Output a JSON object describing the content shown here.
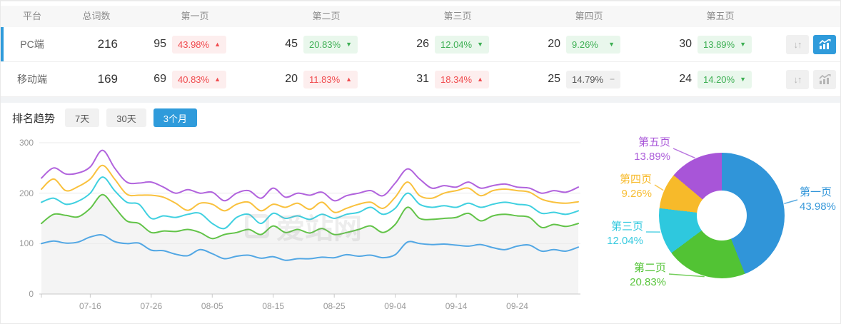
{
  "table": {
    "columns": [
      "平台",
      "总词数",
      "第一页",
      "第二页",
      "第三页",
      "第四页",
      "第五页"
    ],
    "action_icons": [
      "sort-up-down-icon",
      "trend-chart-icon"
    ],
    "rows": [
      {
        "platform": "PC端",
        "total": "216",
        "chart_active": true,
        "pages": [
          {
            "count": "95",
            "pct": "43.98%",
            "trend": "up"
          },
          {
            "count": "45",
            "pct": "20.83%",
            "trend": "down"
          },
          {
            "count": "26",
            "pct": "12.04%",
            "trend": "down"
          },
          {
            "count": "20",
            "pct": "9.26%",
            "trend": "down"
          },
          {
            "count": "30",
            "pct": "13.89%",
            "trend": "down"
          }
        ]
      },
      {
        "platform": "移动端",
        "total": "169",
        "chart_active": false,
        "pages": [
          {
            "count": "69",
            "pct": "40.83%",
            "trend": "up"
          },
          {
            "count": "20",
            "pct": "11.83%",
            "trend": "up"
          },
          {
            "count": "31",
            "pct": "18.34%",
            "trend": "up"
          },
          {
            "count": "25",
            "pct": "14.79%",
            "trend": "flat"
          },
          {
            "count": "24",
            "pct": "14.20%",
            "trend": "down"
          }
        ]
      }
    ]
  },
  "trend": {
    "label": "排名趋势",
    "tabs": [
      {
        "label": "7天",
        "active": false
      },
      {
        "label": "30天",
        "active": false
      },
      {
        "label": "3个月",
        "active": true
      }
    ]
  },
  "watermark": "爱站网",
  "colors": {
    "accent": "#2f9bdb",
    "badge_up": "#f04b4e",
    "badge_down": "#3daf53"
  },
  "chart_data": [
    {
      "type": "line",
      "title": "排名趋势 3个月",
      "ylim": [
        0,
        300
      ],
      "y_ticks": [
        0,
        100,
        200,
        300
      ],
      "x_range_days": [
        0,
        88
      ],
      "x_step_days": 2,
      "x_tick_days": [
        8,
        18,
        28,
        38,
        48,
        58,
        68,
        78
      ],
      "x_tick_labels": [
        "07-16",
        "07-26",
        "08-05",
        "08-15",
        "08-25",
        "09-04",
        "09-14",
        "09-24"
      ],
      "grid": true,
      "series": [
        {
          "name": "第一页",
          "color": "#52a7e4",
          "values": [
            100,
            105,
            101,
            103,
            113,
            117,
            104,
            100,
            101,
            87,
            86,
            79,
            76,
            88,
            80,
            70,
            75,
            77,
            71,
            74,
            67,
            70,
            70,
            73,
            72,
            78,
            75,
            77,
            72,
            78,
            103,
            100,
            98,
            99,
            97,
            95,
            98,
            92,
            88,
            95,
            97,
            85,
            88,
            85,
            93
          ]
        },
        {
          "name": "第二页",
          "color": "#62c348",
          "fill": "#f4f4f4",
          "values": [
            140,
            158,
            156,
            153,
            170,
            197,
            172,
            145,
            140,
            122,
            125,
            124,
            128,
            122,
            110,
            118,
            122,
            128,
            118,
            135,
            122,
            128,
            121,
            130,
            118,
            122,
            128,
            135,
            122,
            138,
            172,
            150,
            148,
            150,
            152,
            160,
            145,
            155,
            158,
            155,
            152,
            132,
            138,
            134,
            140
          ]
        },
        {
          "name": "第三页",
          "color": "#3fd0e0",
          "values": [
            182,
            190,
            178,
            184,
            200,
            232,
            205,
            182,
            178,
            150,
            155,
            152,
            158,
            160,
            140,
            130,
            152,
            158,
            140,
            160,
            150,
            155,
            148,
            158,
            150,
            158,
            162,
            172,
            158,
            170,
            200,
            178,
            172,
            175,
            172,
            180,
            172,
            178,
            182,
            178,
            175,
            160,
            162,
            158,
            165
          ]
        },
        {
          "name": "第四页",
          "color": "#f9c13d",
          "values": [
            208,
            228,
            205,
            213,
            228,
            255,
            228,
            198,
            196,
            196,
            192,
            180,
            166,
            180,
            178,
            165,
            178,
            182,
            165,
            178,
            172,
            180,
            168,
            182,
            162,
            170,
            178,
            182,
            170,
            192,
            222,
            195,
            190,
            200,
            205,
            210,
            195,
            205,
            208,
            205,
            202,
            188,
            182,
            180,
            183
          ]
        },
        {
          "name": "第五页",
          "color": "#b163dd",
          "values": [
            230,
            250,
            238,
            240,
            252,
            285,
            250,
            222,
            220,
            222,
            212,
            200,
            207,
            200,
            202,
            185,
            200,
            205,
            190,
            210,
            192,
            200,
            196,
            202,
            185,
            195,
            200,
            205,
            195,
            220,
            248,
            228,
            210,
            215,
            212,
            222,
            210,
            215,
            218,
            212,
            210,
            200,
            205,
            202,
            212
          ]
        }
      ]
    },
    {
      "type": "pie",
      "donut": true,
      "slices": [
        {
          "label": "第一页",
          "value": 43.98,
          "pct": "43.98%",
          "color": "#3095d9"
        },
        {
          "label": "第二页",
          "value": 20.83,
          "pct": "20.83%",
          "color": "#52c334"
        },
        {
          "label": "第三页",
          "value": 12.04,
          "pct": "12.04%",
          "color": "#2ec8de"
        },
        {
          "label": "第四页",
          "value": 9.26,
          "pct": "9.26%",
          "color": "#f7ba2a"
        },
        {
          "label": "第五页",
          "value": 13.89,
          "pct": "13.89%",
          "color": "#a855d8"
        }
      ]
    }
  ]
}
